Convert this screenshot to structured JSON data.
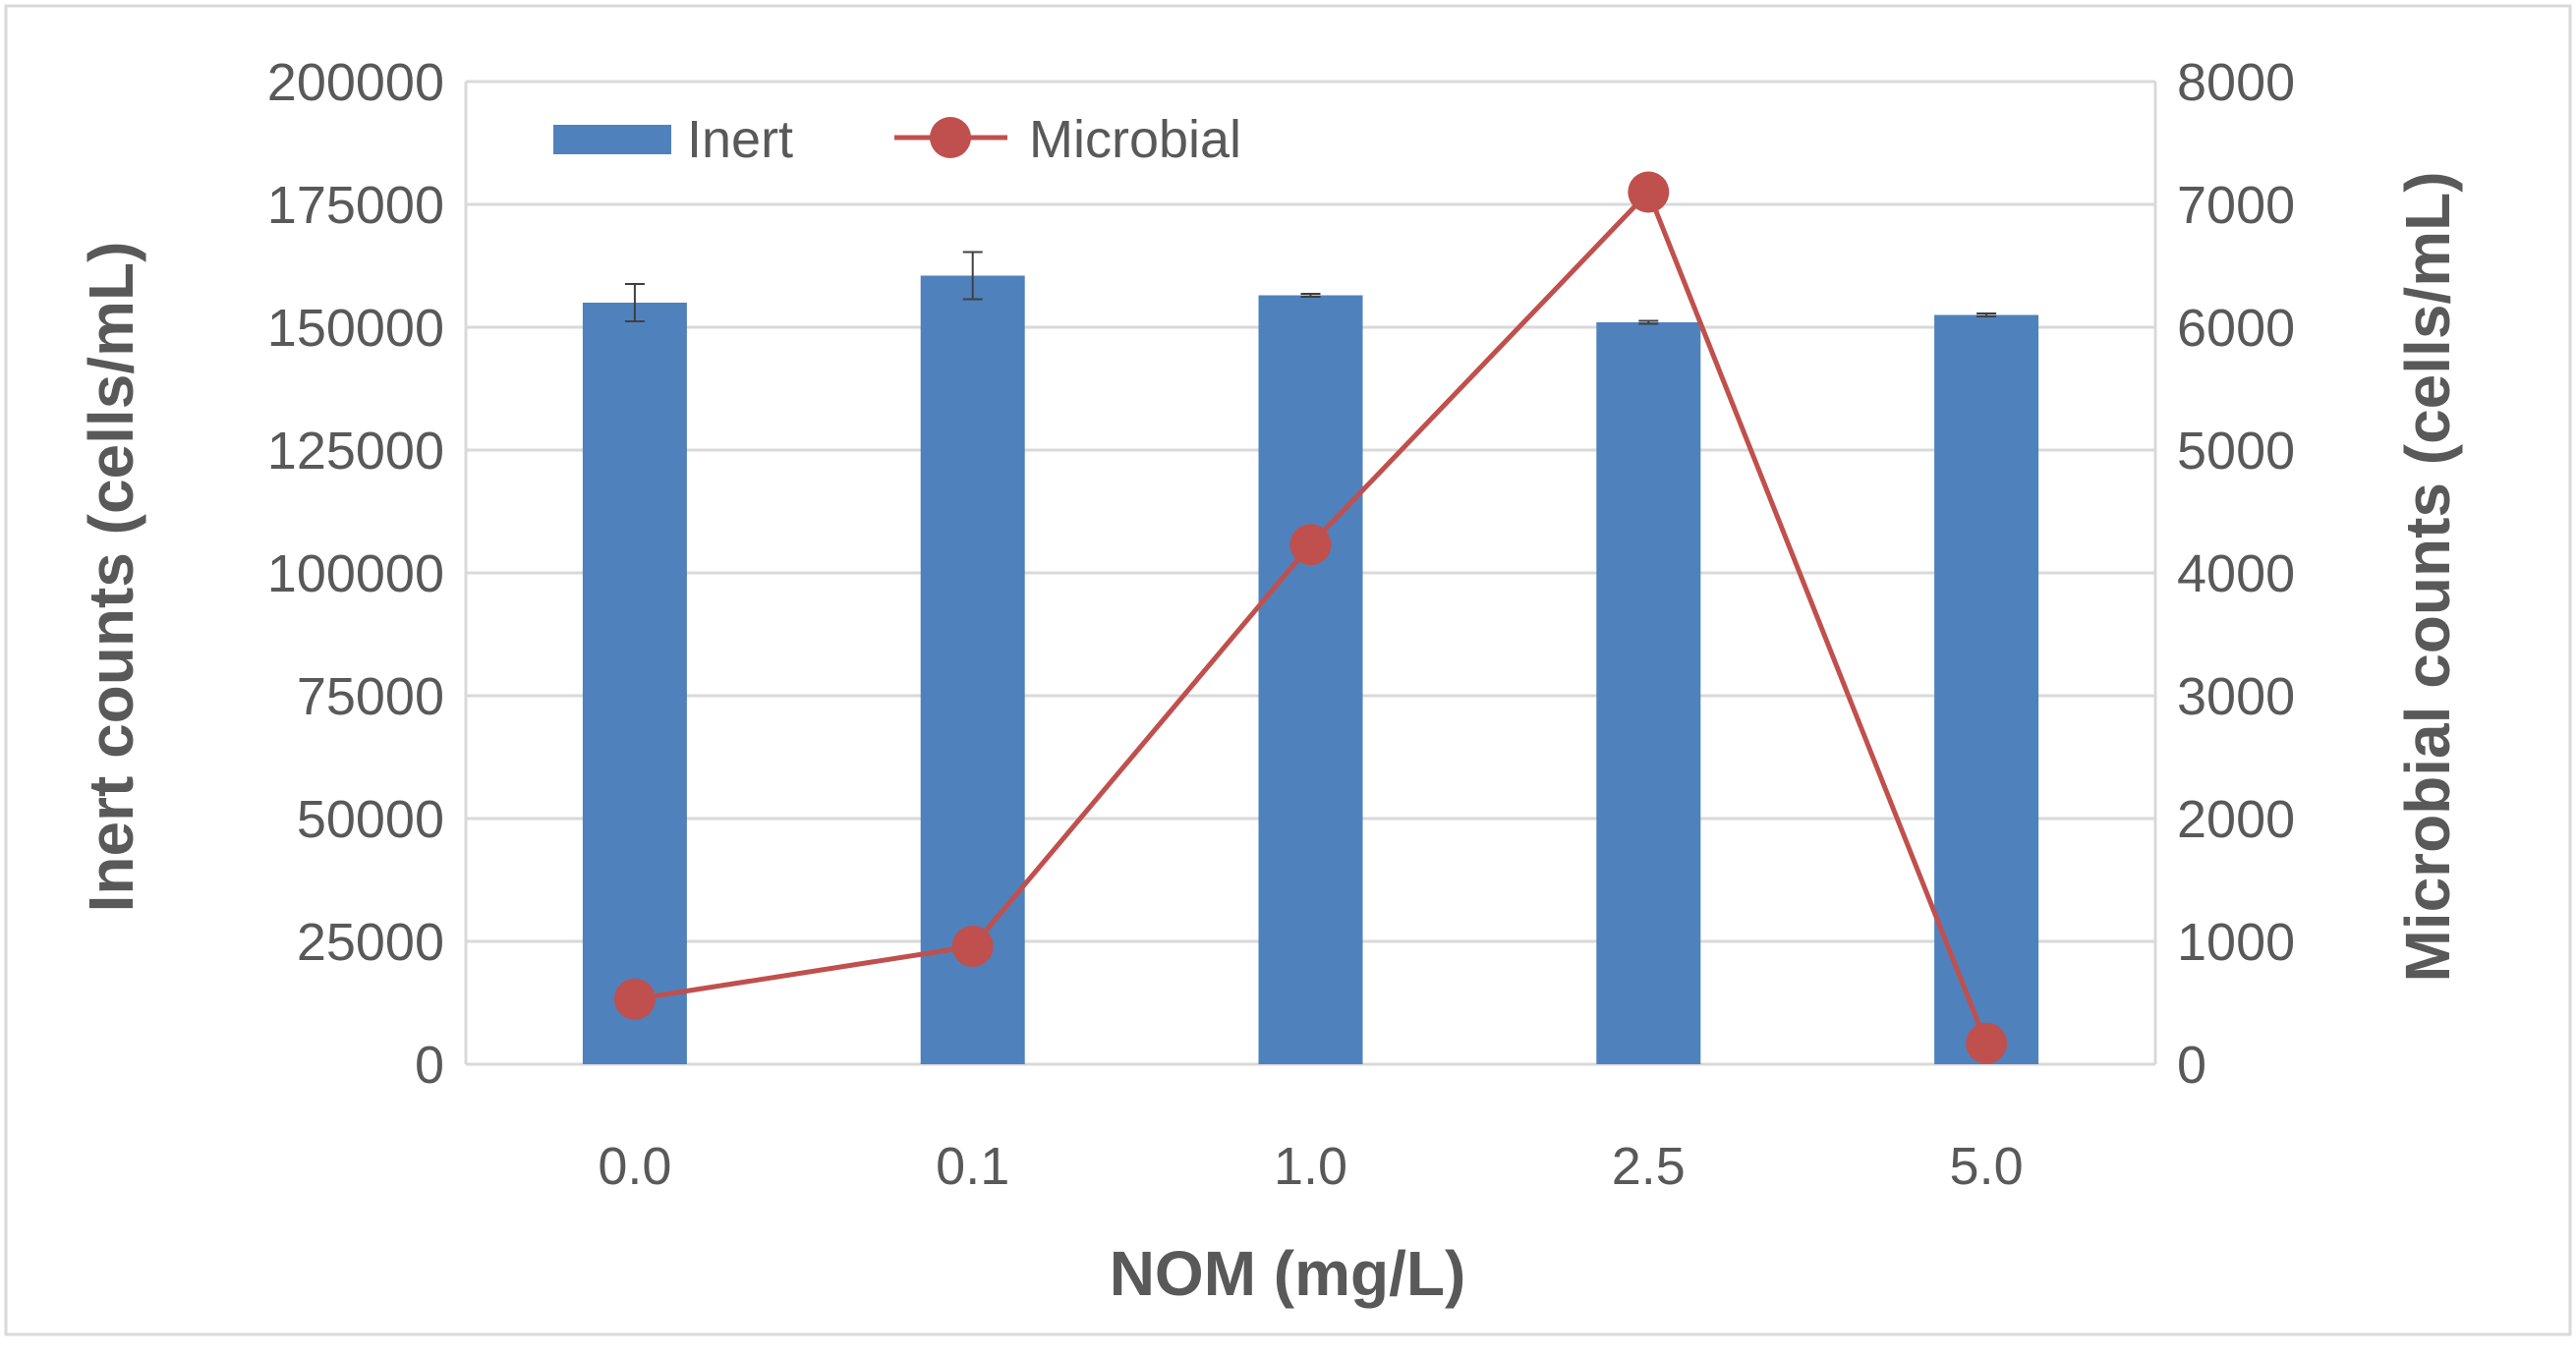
{
  "chart_data": {
    "type": "bar",
    "title": "",
    "xlabel": "NOM (mg/L)",
    "ylabel": "Inert counts (cells/mL)",
    "y2label": "Microbial counts (cells/mL)",
    "categories": [
      "0.0",
      "0.1",
      "1.0",
      "2.5",
      "5.0"
    ],
    "ylim": [
      0,
      200000
    ],
    "y2lim": [
      0,
      8000
    ],
    "y_ticks": [
      "0",
      "25000",
      "50000",
      "75000",
      "100000",
      "125000",
      "150000",
      "175000",
      "200000"
    ],
    "y2_ticks": [
      "0",
      "1000",
      "2000",
      "3000",
      "4000",
      "5000",
      "6000",
      "7000",
      "8000"
    ],
    "grid": true,
    "legend_position": "top-left",
    "series": [
      {
        "name": "Inert",
        "type": "bar",
        "axis": "left",
        "color": "#4F81BD",
        "values": [
          155000,
          160500,
          156500,
          151000,
          152500
        ],
        "errors": [
          3800,
          4800,
          300,
          300,
          300
        ]
      },
      {
        "name": "Microbial",
        "type": "line",
        "axis": "right",
        "color": "#C0504D",
        "values": [
          530,
          960,
          4230,
          7100,
          170
        ]
      }
    ]
  }
}
